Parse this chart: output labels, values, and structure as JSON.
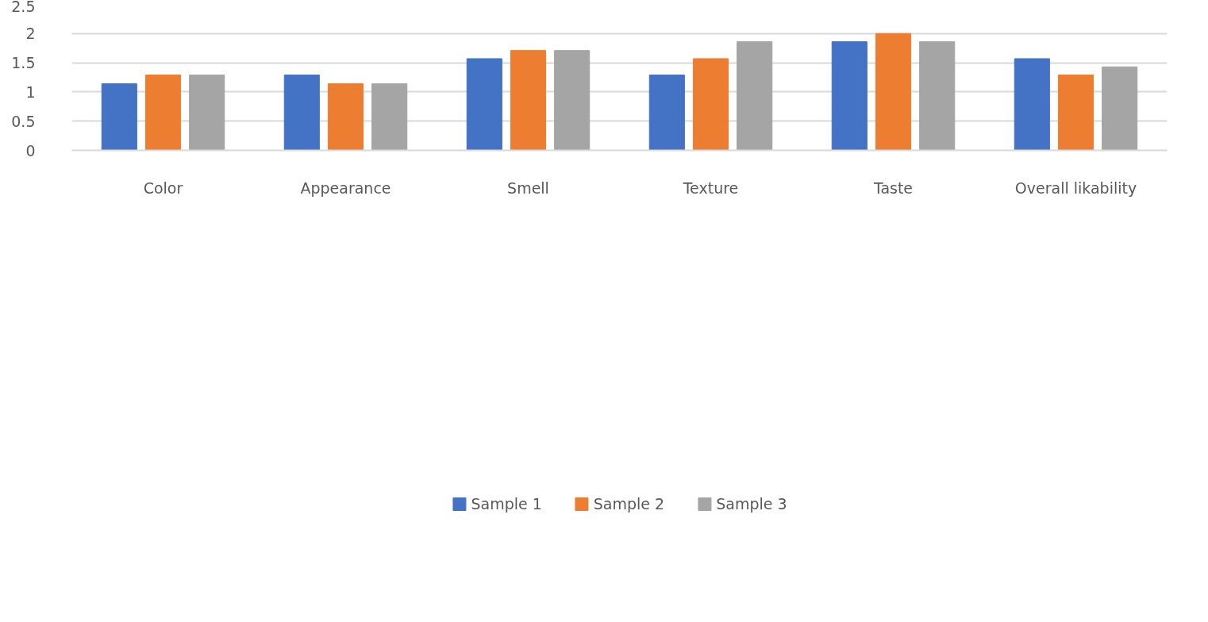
{
  "chart_data": {
    "type": "bar",
    "categories": [
      "Color",
      "Appearance",
      "Smell",
      "Texture",
      "Taste",
      "Overall likability"
    ],
    "series": [
      {
        "name": "Sample 1",
        "color": "#4472c4",
        "values": [
          1.14,
          1.29,
          1.57,
          1.29,
          1.86,
          1.57
        ]
      },
      {
        "name": "Sample 2",
        "color": "#ed7d31",
        "values": [
          1.29,
          1.14,
          1.71,
          1.57,
          2.0,
          1.29
        ]
      },
      {
        "name": "Sample 3",
        "color": "#a5a5a5",
        "values": [
          1.29,
          1.14,
          1.71,
          1.86,
          1.86,
          1.43
        ]
      }
    ],
    "ylim": [
      0,
      2.5
    ],
    "yticks": [
      0,
      0.5,
      1,
      1.5,
      2,
      2.5
    ],
    "grid": "y",
    "legend": "bottom"
  }
}
